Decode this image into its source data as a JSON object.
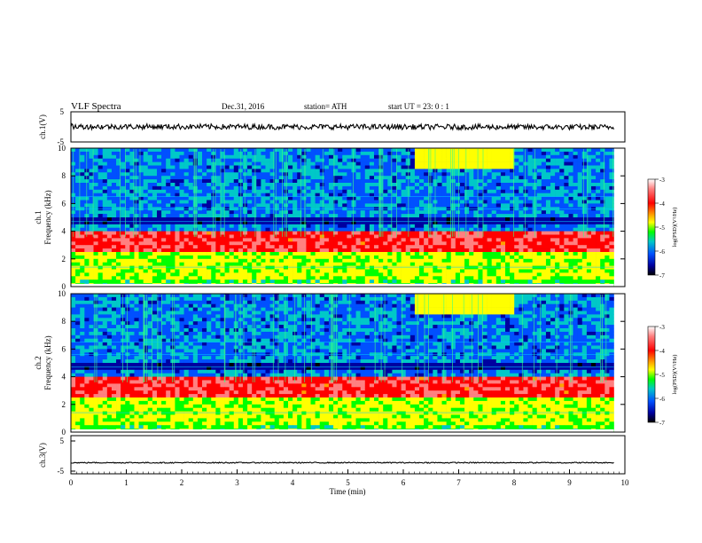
{
  "header": {
    "title": "VLF  Spectra",
    "date": "Dec.31, 2016",
    "station": "station= ATH",
    "start": "start  UT  =    23: 0   : 1"
  },
  "colorbar": {
    "label": "log(PSD)(V²/Hz)",
    "ticks": [
      "-3",
      "-4",
      "-5",
      "-6",
      "-7"
    ],
    "stops": [
      "#ffffff",
      "#ff8080",
      "#ff0000",
      "#ffa000",
      "#ffff00",
      "#00ff00",
      "#00c8c8",
      "#0050ff",
      "#0000a0",
      "#000000"
    ]
  },
  "chart_data": [
    {
      "type": "line",
      "panel": "ch1-waveform",
      "ylabel": "ch.1(V)",
      "ylim": [
        -5,
        5
      ],
      "yticks": [
        "5",
        "-5"
      ],
      "x_range_min": [
        0,
        9.8
      ],
      "y_approx": [
        0.1,
        -0.1
      ]
    },
    {
      "type": "heatmap",
      "panel": "ch1-spectrogram",
      "ylabel_top": "ch.1",
      "ylabel": "Frequency  (kHz)",
      "ylim_khz": [
        0,
        10
      ],
      "yticks": [
        "0",
        "2",
        "4",
        "6",
        "8",
        "10"
      ],
      "x_range_min": [
        0,
        9.8
      ],
      "features": {
        "intense_band_khz": [
          2.4,
          4.0
        ],
        "chorus_emission_min": [
          6.2,
          8.0
        ],
        "chorus_emission_khz": [
          8.6,
          10.0
        ]
      }
    },
    {
      "type": "heatmap",
      "panel": "ch2-spectrogram",
      "ylabel_top": "ch.2",
      "ylabel": "Frequency  (kHz)",
      "ylim_khz": [
        0,
        10
      ],
      "yticks": [
        "0",
        "2",
        "4",
        "6",
        "8",
        "10"
      ],
      "x_range_min": [
        0,
        9.8
      ],
      "features": {
        "intense_band_khz": [
          2.4,
          4.0
        ],
        "chorus_emission_min": [
          6.2,
          8.0
        ],
        "chorus_emission_khz": [
          8.4,
          10.0
        ]
      }
    },
    {
      "type": "line",
      "panel": "ch3-waveform",
      "ylabel": "ch.3(V)",
      "ylim": [
        -5,
        5
      ],
      "yticks": [
        "5",
        "-5"
      ],
      "x_range_min": [
        0,
        9.8
      ],
      "y_approx": [
        -2.2,
        -2.2
      ]
    }
  ],
  "xaxis": {
    "label": "Time  (min)",
    "ticks": [
      "0",
      "1",
      "2",
      "3",
      "4",
      "5",
      "6",
      "7",
      "8",
      "9",
      "10"
    ]
  }
}
